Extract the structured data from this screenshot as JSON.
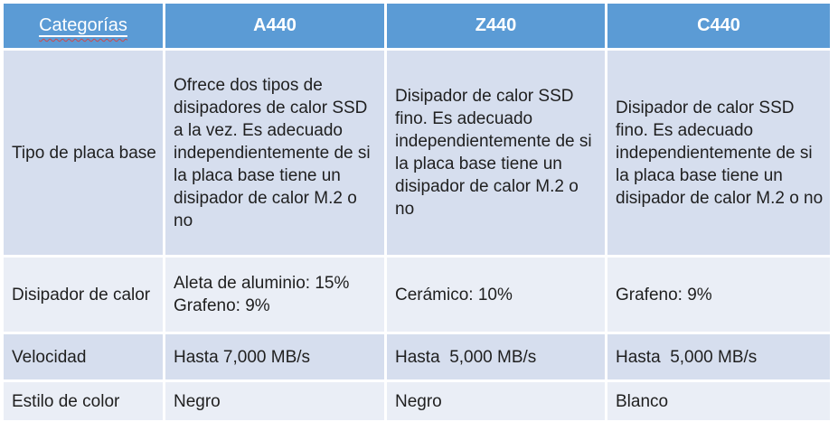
{
  "table": {
    "category_header": "Categorías",
    "product_columns": [
      "A440",
      "Z440",
      "C440"
    ],
    "rows": [
      {
        "label": "Tipo de placa base",
        "values": [
          "Ofrece dos tipos de disipadores de calor SSD a la vez. Es adecuado independientemente de si la placa base tiene un disipador de calor M.2 o no",
          "Disipador de calor SSD fino. Es adecuado independientemente de si la placa base tiene un disipador de calor M.2 o no",
          "Disipador de calor SSD fino. Es adecuado independientemente de si la placa base tiene un disipador de calor M.2 o no"
        ]
      },
      {
        "label": "Disipador de calor",
        "values": [
          "Aleta de aluminio: 15%\nGrafeno: 9%",
          "Cerámico: 10%",
          "Grafeno: 9%"
        ]
      },
      {
        "label": "Velocidad",
        "values": [
          "Hasta 7,000 MB/s",
          "Hasta  5,000 MB/s",
          "Hasta  5,000 MB/s"
        ]
      },
      {
        "label": "Estilo de color",
        "values": [
          "Negro",
          "Negro",
          "Blanco"
        ]
      }
    ]
  },
  "colors": {
    "header_bg": "#5b9bd5",
    "band_dark": "#d6deee",
    "band_light": "#eaeef6",
    "header_text": "#ffffff",
    "body_text": "#1f1f1f",
    "gap_color": "#ffffff",
    "spell_color": "#cf4747"
  }
}
